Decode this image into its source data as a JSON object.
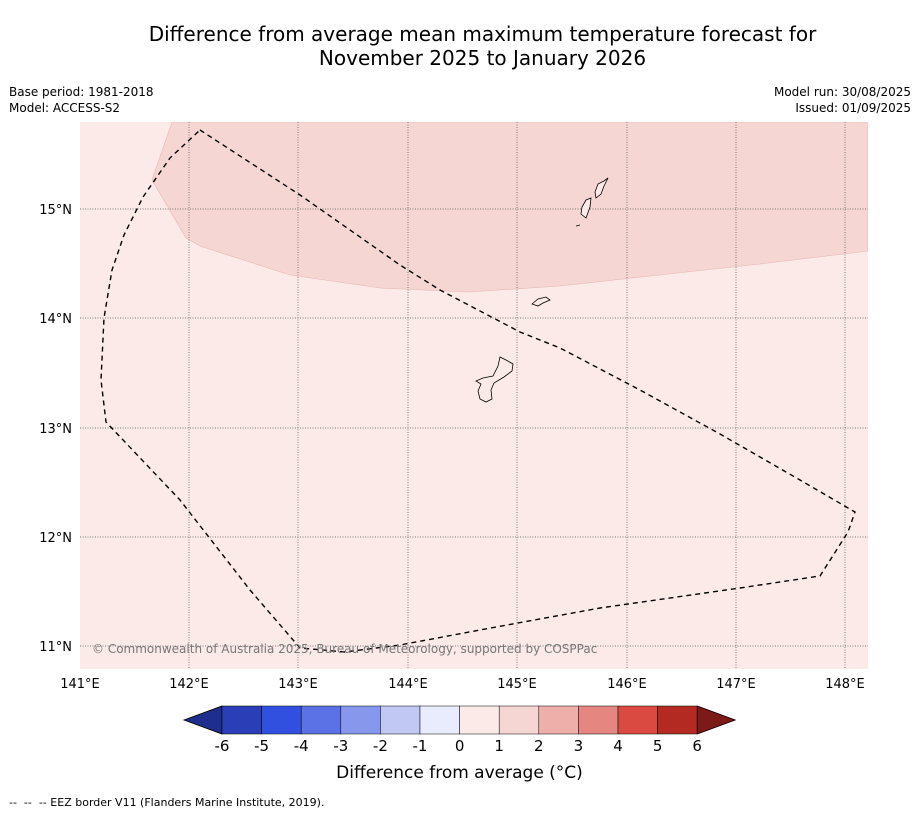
{
  "title_line1": "Difference from average mean maximum temperature forecast for",
  "title_line2": "November 2025 to January 2026",
  "meta_left": {
    "base_period": "Base period: 1981-2018",
    "model": "Model: ACCESS-S2"
  },
  "meta_right": {
    "model_run": "Model run: 30/08/2025",
    "issued": "Issued: 01/09/2025"
  },
  "lat_labels": [
    "15°N",
    "14°N",
    "13°N",
    "12°N",
    "11°N"
  ],
  "lon_labels": [
    "141°E",
    "142°E",
    "143°E",
    "144°E",
    "145°E",
    "146°E",
    "147°E",
    "148°E"
  ],
  "copyright": "© Commonwealth of Australia 2025, Bureau of Meteorology, supported by COSPPac",
  "colorbar": {
    "ticks": [
      "-6",
      "-5",
      "-4",
      "-3",
      "-2",
      "-1",
      "0",
      "1",
      "2",
      "3",
      "4",
      "5",
      "6"
    ],
    "colors": [
      "#1e2e8c",
      "#2a3eb8",
      "#3150e0",
      "#5a72e6",
      "#8798ec",
      "#c1c8f4",
      "#e9ecfc",
      "#fbeae8",
      "#f5d6d3",
      "#eeaeaa",
      "#e58680",
      "#db4a40",
      "#b22a22",
      "#7c1a18"
    ],
    "label": "Difference from average (°C)"
  },
  "map_colors": {
    "anomaly_0_1": "#fbeae8",
    "anomaly_1_2": "#f5d6d3"
  },
  "footnote": "--  --  -- EEZ border V11 (Flanders Marine Institute, 2019)."
}
